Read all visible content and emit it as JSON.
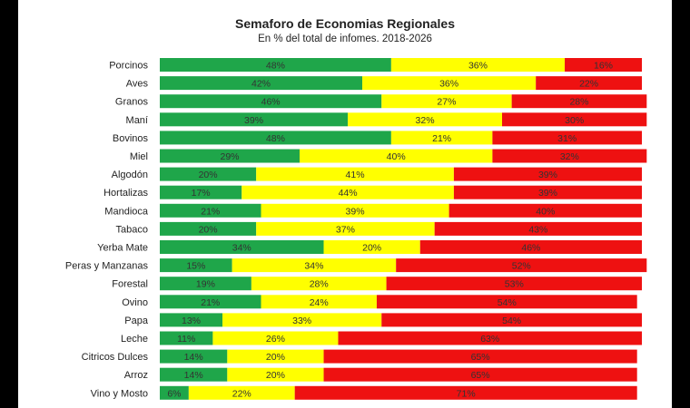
{
  "chart_data": {
    "type": "bar",
    "orientation": "horizontal",
    "stacked": true,
    "title": "Semaforo de Economias Regionales",
    "subtitle": "En % del total de infomes. 2018-2026",
    "categories": [
      "Porcinos",
      "Aves",
      "Granos",
      "Maní",
      "Bovinos",
      "Miel",
      "Algodón",
      "Hortalizas",
      "Mandioca",
      "Tabaco",
      "Yerba Mate",
      "Peras y Manzanas",
      "Forestal",
      "Ovino",
      "Papa",
      "Leche",
      "Citricos Dulces",
      "Arroz",
      "Vino y Mosto"
    ],
    "series": [
      {
        "color": "#1fa64a",
        "values": [
          48,
          42,
          46,
          39,
          48,
          29,
          20,
          17,
          21,
          20,
          34,
          15,
          19,
          21,
          13,
          11,
          14,
          14,
          6
        ]
      },
      {
        "color": "#ffff00",
        "values": [
          36,
          36,
          27,
          32,
          21,
          40,
          41,
          44,
          39,
          37,
          20,
          34,
          28,
          24,
          33,
          26,
          20,
          20,
          22
        ]
      },
      {
        "color": "#ee1111",
        "values": [
          16,
          22,
          28,
          30,
          31,
          32,
          39,
          39,
          40,
          43,
          46,
          52,
          53,
          54,
          54,
          63,
          65,
          65,
          71
        ]
      }
    ],
    "xlim": [
      0,
      100
    ],
    "legend": "none",
    "grid": false
  }
}
